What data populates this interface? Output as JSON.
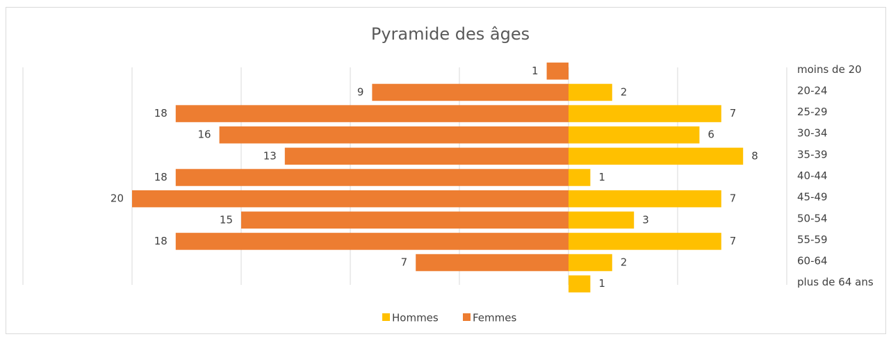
{
  "chart_data": {
    "type": "pyramid",
    "title": "Pyramide des âges",
    "categories": [
      "moins de 20",
      "20-24",
      "25-29",
      "30-34",
      "35-39",
      "40-44",
      "45-49",
      "50-54",
      "55-59",
      "60-64",
      "plus de 64 ans"
    ],
    "series": [
      {
        "name": "Hommes",
        "color": "#ffc000",
        "values": [
          null,
          2,
          7,
          6,
          8,
          1,
          7,
          3,
          7,
          2,
          1
        ]
      },
      {
        "name": "Femmes",
        "color": "#ed7d31",
        "values": [
          -1,
          -9,
          -18,
          -16,
          -13,
          -18,
          -20,
          -15,
          -18,
          -7,
          null
        ],
        "value_labels": [
          "1",
          "9",
          "18",
          "16",
          "13",
          "18",
          "20",
          "15",
          "18",
          "7",
          null
        ]
      }
    ],
    "xlim": [
      -25,
      10
    ],
    "xticks": [
      -25,
      -20,
      -15,
      -10,
      -5,
      0,
      5,
      10
    ],
    "grid": true,
    "legend": "bottom"
  }
}
